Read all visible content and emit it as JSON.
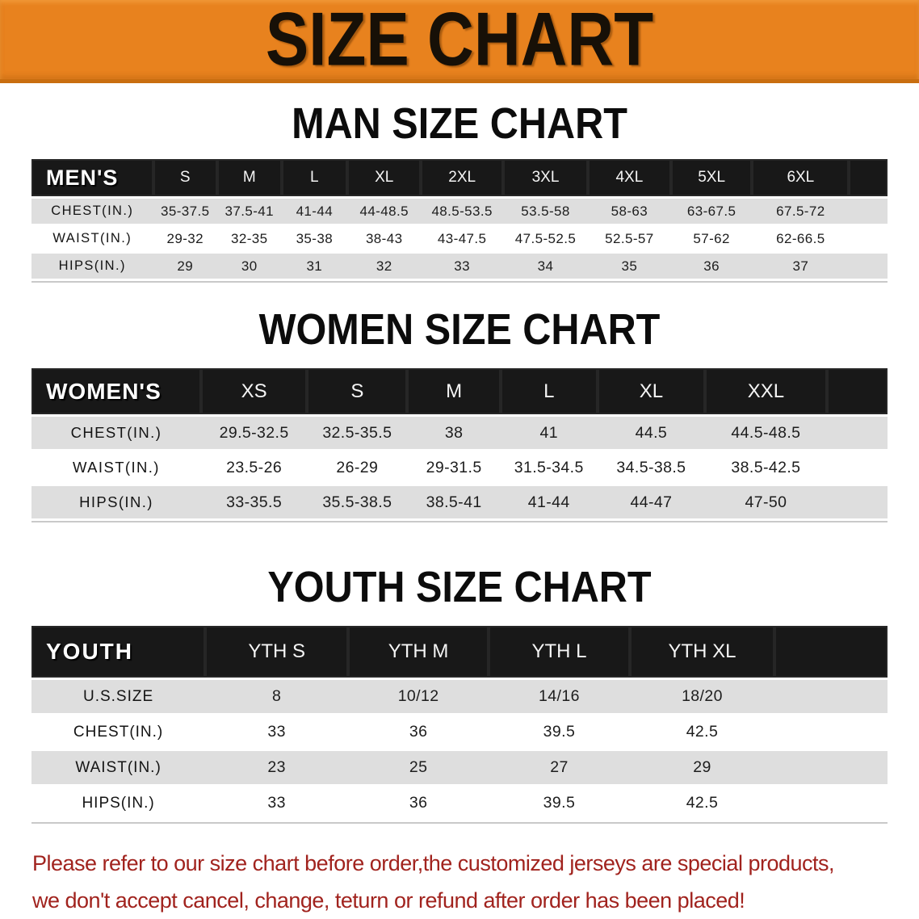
{
  "banner": {
    "title": "SIZE CHART"
  },
  "sections": [
    {
      "id": "men",
      "heading": "MAN SIZE CHART",
      "table": {
        "group_label": "MEN'S",
        "columns": [
          "S",
          "M",
          "L",
          "XL",
          "2XL",
          "3XL",
          "4XL",
          "5XL",
          "6XL"
        ],
        "rows": [
          {
            "label": "CHEST(IN.)",
            "values": [
              "35-37.5",
              "37.5-41",
              "41-44",
              "44-48.5",
              "48.5-53.5",
              "53.5-58",
              "58-63",
              "63-67.5",
              "67.5-72"
            ]
          },
          {
            "label": "WAIST(IN.)",
            "values": [
              "29-32",
              "32-35",
              "35-38",
              "38-43",
              "43-47.5",
              "47.5-52.5",
              "52.5-57",
              "57-62",
              "62-66.5"
            ]
          },
          {
            "label": "HIPS(IN.)",
            "values": [
              "29",
              "30",
              "31",
              "32",
              "33",
              "34",
              "35",
              "36",
              "37"
            ]
          }
        ]
      }
    },
    {
      "id": "women",
      "heading": "WOMEN SIZE CHART",
      "table": {
        "group_label": "WOMEN'S",
        "columns": [
          "XS",
          "S",
          "M",
          "L",
          "XL",
          "XXL"
        ],
        "rows": [
          {
            "label": "CHEST(IN.)",
            "values": [
              "29.5-32.5",
              "32.5-35.5",
              "38",
              "41",
              "44.5",
              "44.5-48.5"
            ]
          },
          {
            "label": "WAIST(IN.)",
            "values": [
              "23.5-26",
              "26-29",
              "29-31.5",
              "31.5-34.5",
              "34.5-38.5",
              "38.5-42.5"
            ]
          },
          {
            "label": "HIPS(IN.)",
            "values": [
              "33-35.5",
              "35.5-38.5",
              "38.5-41",
              "41-44",
              "44-47",
              "47-50"
            ]
          }
        ]
      }
    },
    {
      "id": "youth",
      "heading": "YOUTH SIZE CHART",
      "table": {
        "group_label": "YOUTH",
        "columns": [
          "YTH S",
          "YTH M",
          "YTH L",
          "YTH XL"
        ],
        "rows": [
          {
            "label": "U.S.SIZE",
            "values": [
              "8",
              "10/12",
              "14/16",
              "18/20"
            ]
          },
          {
            "label": "CHEST(IN.)",
            "values": [
              "33",
              "36",
              "39.5",
              "42.5"
            ]
          },
          {
            "label": "WAIST(IN.)",
            "values": [
              "23",
              "25",
              "27",
              "29"
            ]
          },
          {
            "label": "HIPS(IN.)",
            "values": [
              "33",
              "36",
              "39.5",
              "42.5"
            ]
          }
        ]
      }
    }
  ],
  "disclaimer": {
    "lines": [
      "Please refer to our size chart before order,the customized jerseys are special products,",
      "we don't accept cancel, change, teturn or refund after order has been placed!"
    ]
  },
  "colors": {
    "banner_background": "#E8821E",
    "banner_border": "#C96E10",
    "banner_text": "#171007",
    "header_bar": "#181818",
    "header_text": "#FFFFFF",
    "row_stripe": "#DEDEDE",
    "row_white": "#FFFFFF",
    "body_text": "#1D1D1D",
    "disclaimer_text": "#A1231E"
  }
}
